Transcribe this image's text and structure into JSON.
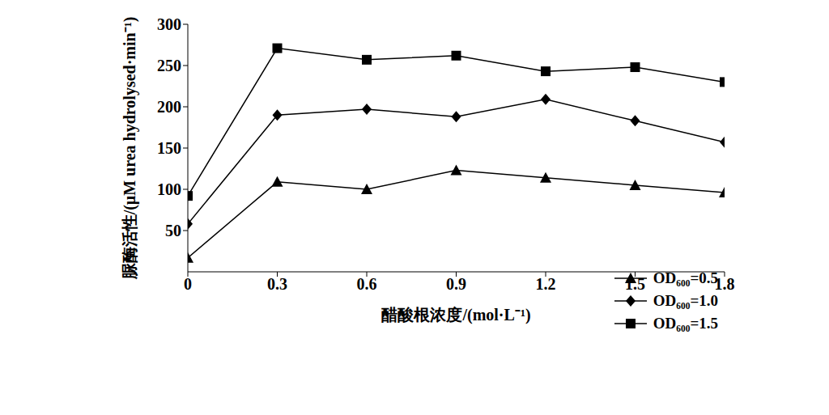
{
  "chart_data": {
    "type": "line",
    "x_label": "醋酸根浓度/(mol·L⁻¹)",
    "y_label": "脲酶活性/(μM urea hydrolysed·min⁻¹)",
    "x": [
      0,
      0.3,
      0.6,
      0.9,
      1.2,
      1.5,
      1.8
    ],
    "xlim": [
      0,
      1.8
    ],
    "xticks": [
      0,
      0.3,
      0.6,
      0.9,
      1.2,
      1.5,
      1.8
    ],
    "ylim": [
      0,
      300
    ],
    "yticks": [
      50,
      100,
      150,
      200,
      250,
      300
    ],
    "grid": false,
    "legend": "lower right",
    "series": [
      {
        "name": "OD₆₀₀=0.5",
        "color": "#000000",
        "marker": "triangle",
        "line_style": "solid",
        "values": [
          17,
          109,
          100,
          123,
          114,
          105,
          96
        ]
      },
      {
        "name": "OD₆₀₀=1.0",
        "color": "#000000",
        "marker": "diamond",
        "line_style": "solid",
        "values": [
          58,
          190,
          197,
          188,
          209,
          183,
          157
        ]
      },
      {
        "name": "OD₆₀₀=1.5",
        "color": "#000000",
        "marker": "square",
        "line_style": "solid",
        "values": [
          92,
          271,
          257,
          262,
          243,
          248,
          230
        ]
      }
    ]
  }
}
